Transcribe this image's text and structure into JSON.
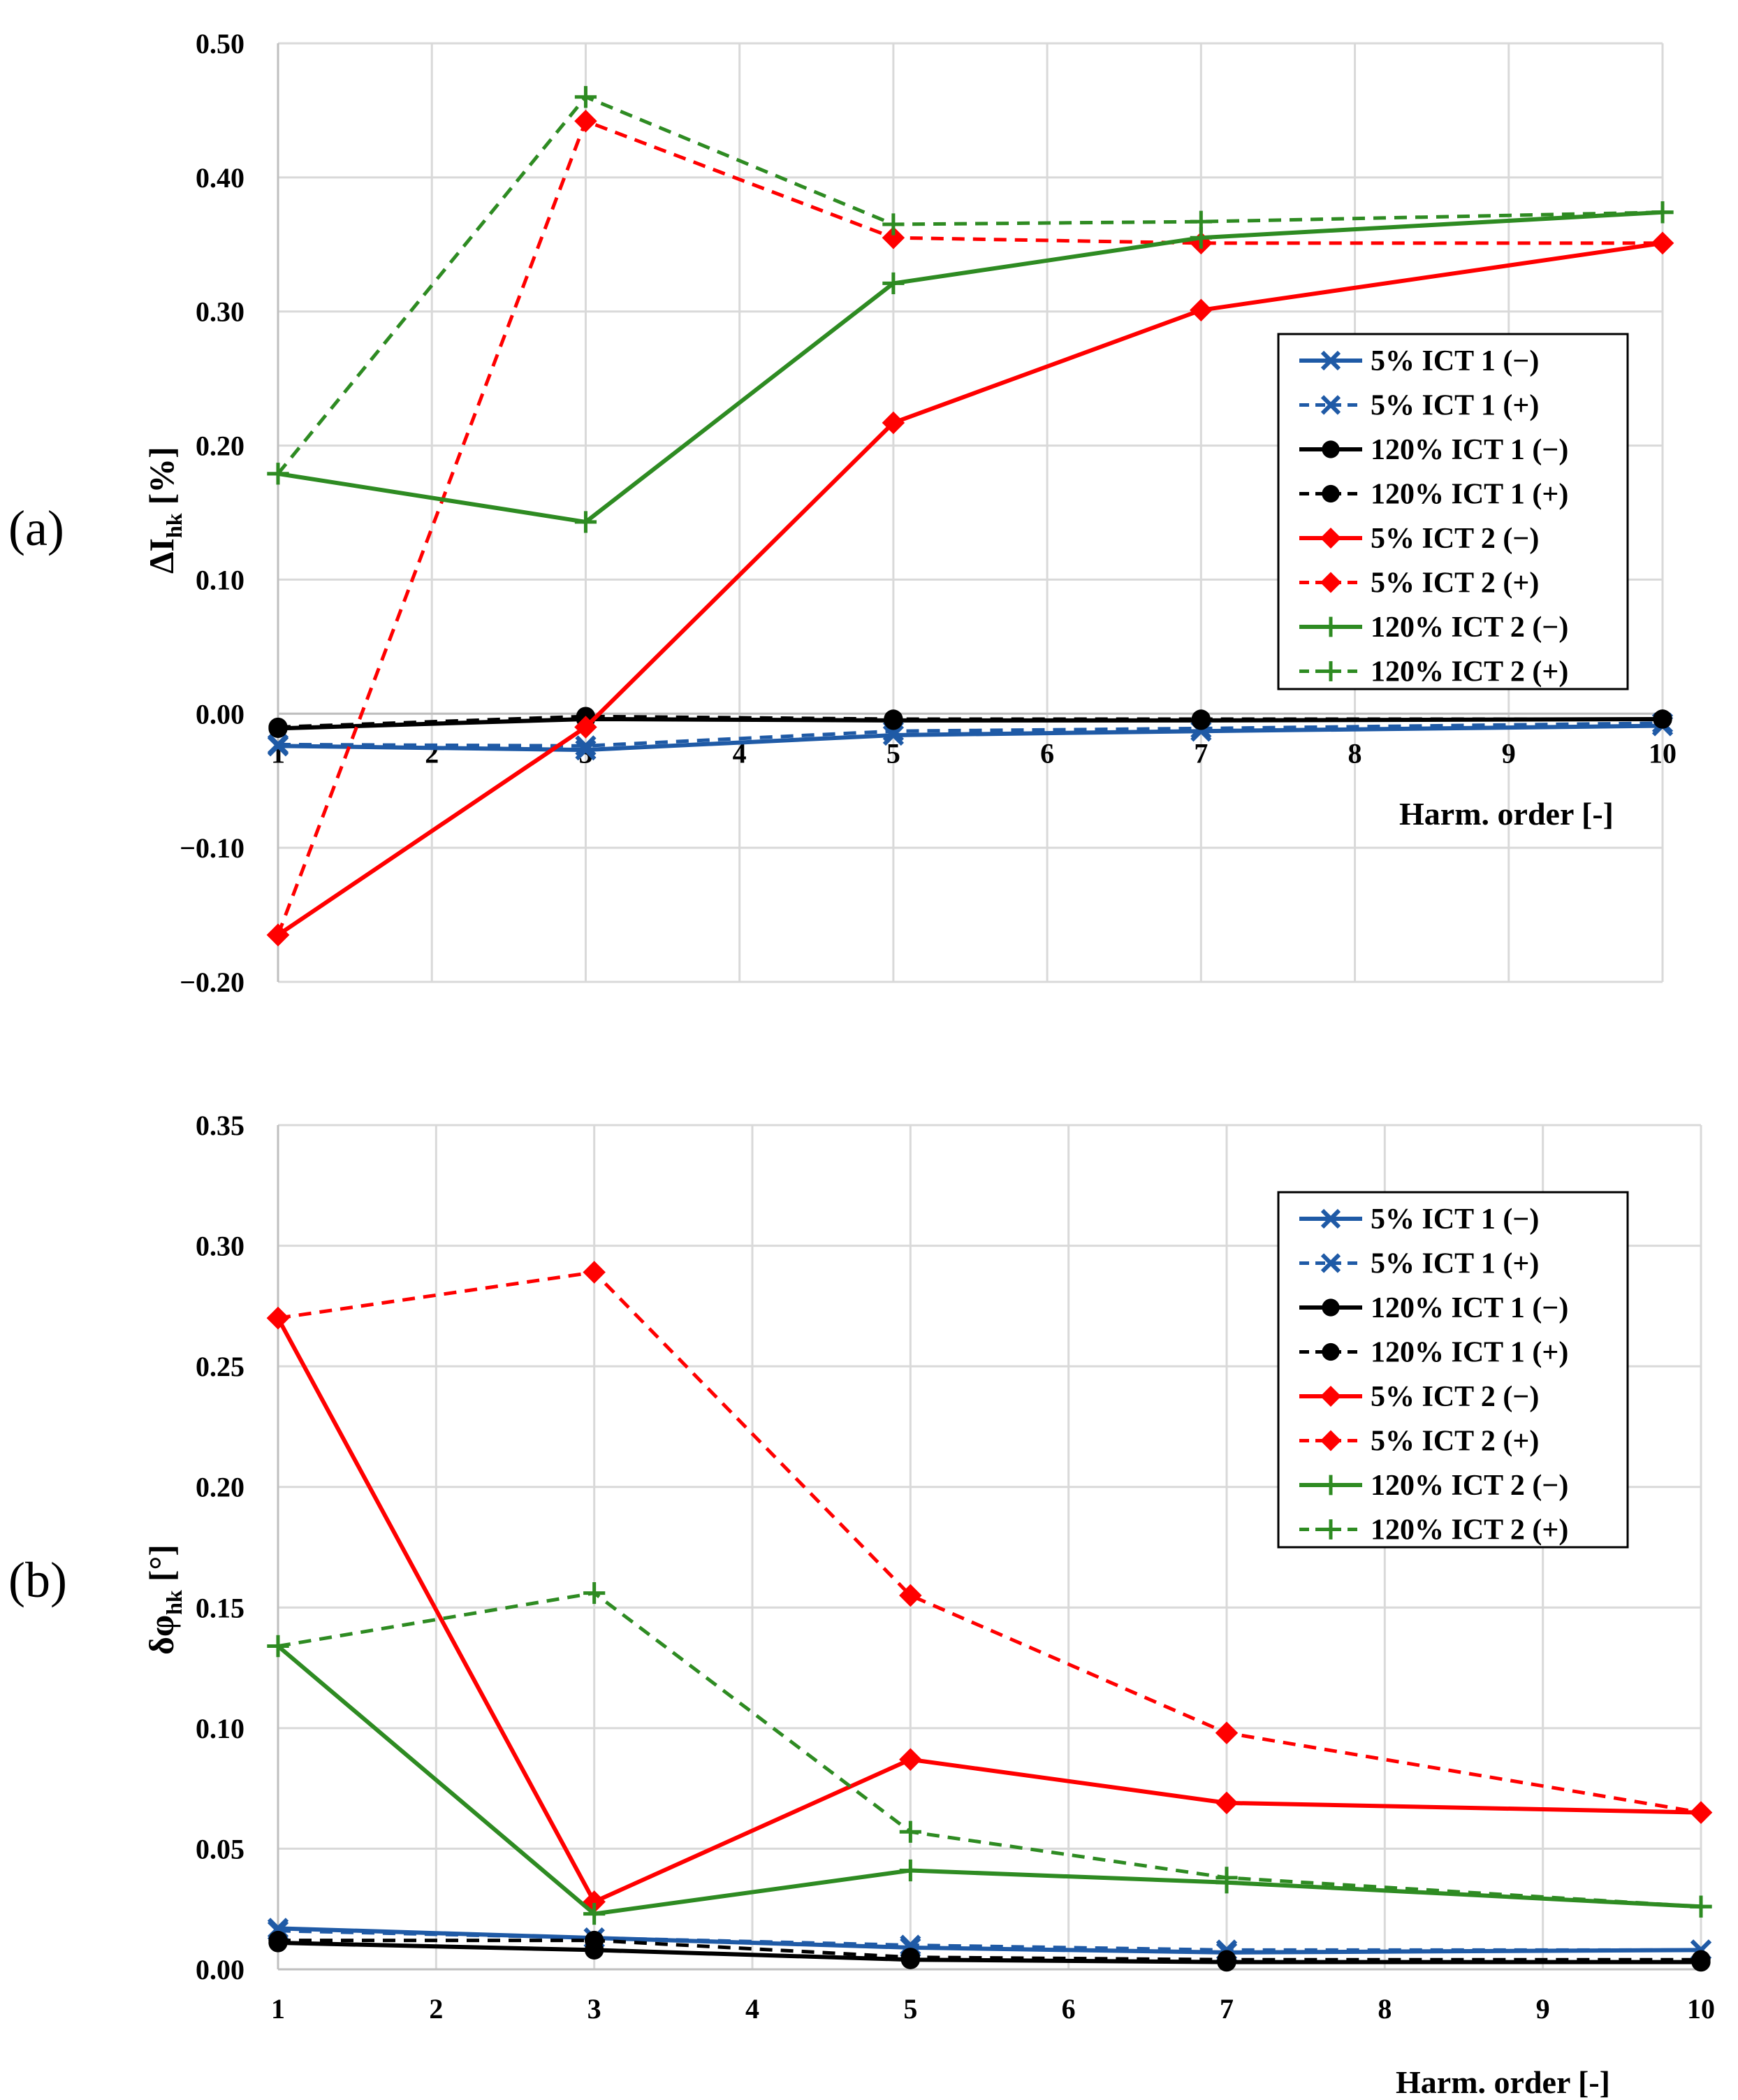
{
  "figure": {
    "label_a": "(a)",
    "label_b": "(b)"
  },
  "colors": {
    "blue": "#1F5AA6",
    "black": "#000000",
    "red": "#FF0000",
    "green": "#2E8B22",
    "grid": "#D9D9D9",
    "axis": "#D9D9D9"
  },
  "chart_data": [
    {
      "id": "a",
      "type": "line",
      "title": "",
      "xlabel": "Harm. order [-]",
      "ylabel": "ΔI",
      "ylabel_sub": "hk",
      "ylabel_unit": "[%]",
      "xlim": [
        1,
        10
      ],
      "ylim": [
        -0.2,
        0.5
      ],
      "xticks": [
        "1",
        "2",
        "3",
        "4",
        "5",
        "6",
        "7",
        "8",
        "9",
        "10"
      ],
      "yticks": [
        "−0.20",
        "−0.10",
        "0.00",
        "0.10",
        "0.20",
        "0.30",
        "0.40",
        "0.50"
      ],
      "ytick_values": [
        -0.2,
        -0.1,
        0.0,
        0.1,
        0.2,
        0.3,
        0.4,
        0.5
      ],
      "grid": true,
      "legend_position": "right-middle",
      "x": [
        1,
        3,
        5,
        7,
        10
      ],
      "series": [
        {
          "name": "5% ICT 1 (−)",
          "color": "blue",
          "dash": false,
          "marker": "x",
          "values": [
            -0.024,
            -0.027,
            -0.016,
            -0.013,
            -0.009
          ]
        },
        {
          "name": "5% ICT 1 (+)",
          "color": "blue",
          "dash": true,
          "marker": "x",
          "values": [
            -0.023,
            -0.024,
            -0.013,
            -0.011,
            -0.007
          ]
        },
        {
          "name": "120% ICT 1 (−)",
          "color": "black",
          "dash": false,
          "marker": "circle",
          "values": [
            -0.011,
            -0.004,
            -0.005,
            -0.005,
            -0.004
          ]
        },
        {
          "name": "120% ICT 1 (+)",
          "color": "black",
          "dash": true,
          "marker": "circle",
          "values": [
            -0.01,
            -0.002,
            -0.004,
            -0.004,
            -0.004
          ]
        },
        {
          "name": "5% ICT 2 (−)",
          "color": "red",
          "dash": false,
          "marker": "diamond",
          "values": [
            -0.165,
            -0.01,
            0.217,
            0.301,
            0.351
          ]
        },
        {
          "name": "5% ICT 2 (+)",
          "color": "red",
          "dash": true,
          "marker": "diamond",
          "values": [
            -0.165,
            0.442,
            0.355,
            0.351,
            0.351
          ]
        },
        {
          "name": "120% ICT 2 (−)",
          "color": "green",
          "dash": false,
          "marker": "plus",
          "values": [
            0.179,
            0.143,
            0.321,
            0.355,
            0.374
          ]
        },
        {
          "name": "120% ICT 2 (+)",
          "color": "green",
          "dash": true,
          "marker": "plus",
          "values": [
            0.179,
            0.46,
            0.365,
            0.367,
            0.374
          ]
        }
      ]
    },
    {
      "id": "b",
      "type": "line",
      "title": "",
      "xlabel": "Harm. order [-]",
      "ylabel": "δφ",
      "ylabel_sub": "hk",
      "ylabel_unit": "[°]",
      "xlim": [
        1,
        10
      ],
      "ylim": [
        0.0,
        0.35
      ],
      "xticks": [
        "1",
        "2",
        "3",
        "4",
        "5",
        "6",
        "7",
        "8",
        "9",
        "10"
      ],
      "yticks": [
        "0.00",
        "0.05",
        "0.10",
        "0.15",
        "0.20",
        "0.25",
        "0.30",
        "0.35"
      ],
      "ytick_values": [
        0.0,
        0.05,
        0.1,
        0.15,
        0.2,
        0.25,
        0.3,
        0.35
      ],
      "grid": true,
      "legend_position": "top-right",
      "x": [
        1,
        3,
        5,
        7,
        10
      ],
      "series": [
        {
          "name": "5% ICT 1 (−)",
          "color": "blue",
          "dash": false,
          "marker": "x",
          "values": [
            0.017,
            0.013,
            0.009,
            0.007,
            0.008
          ]
        },
        {
          "name": "5% ICT 1 (+)",
          "color": "blue",
          "dash": true,
          "marker": "x",
          "values": [
            0.016,
            0.013,
            0.01,
            0.008,
            0.008
          ]
        },
        {
          "name": "120% ICT 1 (−)",
          "color": "black",
          "dash": false,
          "marker": "circle",
          "values": [
            0.011,
            0.008,
            0.004,
            0.003,
            0.003
          ]
        },
        {
          "name": "120% ICT 1 (+)",
          "color": "black",
          "dash": true,
          "marker": "circle",
          "values": [
            0.012,
            0.012,
            0.005,
            0.004,
            0.004
          ]
        },
        {
          "name": "5% ICT 2 (−)",
          "color": "red",
          "dash": false,
          "marker": "diamond",
          "values": [
            0.27,
            0.028,
            0.087,
            0.069,
            0.065
          ]
        },
        {
          "name": "5% ICT 2 (+)",
          "color": "red",
          "dash": true,
          "marker": "diamond",
          "values": [
            0.27,
            0.289,
            0.155,
            0.098,
            0.065
          ]
        },
        {
          "name": "120% ICT 2 (−)",
          "color": "green",
          "dash": false,
          "marker": "plus",
          "values": [
            0.134,
            0.023,
            0.041,
            0.036,
            0.026
          ]
        },
        {
          "name": "120% ICT 2 (+)",
          "color": "green",
          "dash": true,
          "marker": "plus",
          "values": [
            0.134,
            0.156,
            0.057,
            0.038,
            0.026
          ]
        }
      ]
    }
  ]
}
